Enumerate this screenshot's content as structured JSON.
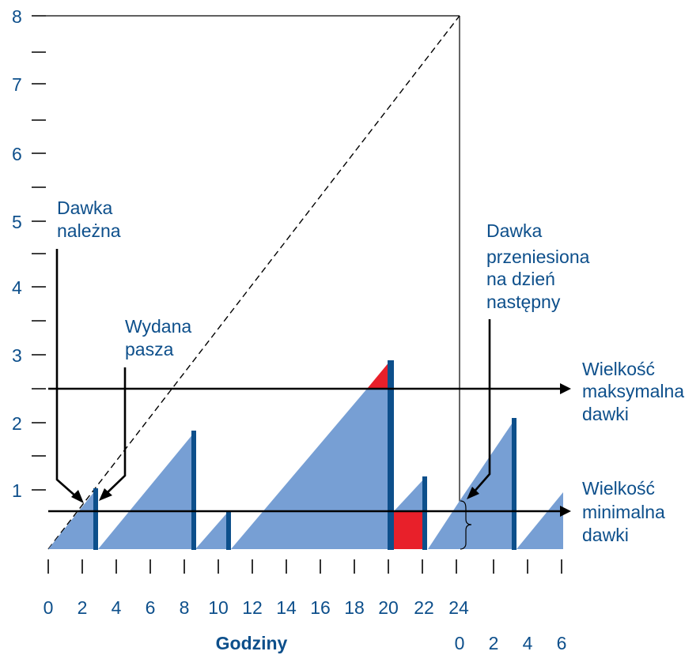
{
  "y_axis": {
    "ticks": [
      "1",
      "2",
      "3",
      "4",
      "5",
      "6",
      "7",
      "8"
    ]
  },
  "x_axis": {
    "ticks": [
      "0",
      "2",
      "4",
      "6",
      "8",
      "10",
      "12",
      "14",
      "16",
      "18",
      "20",
      "22",
      "24"
    ],
    "next_day_ticks": [
      "0",
      "2",
      "4",
      "6"
    ],
    "title": "Godziny"
  },
  "annotations": {
    "due_dose": [
      "Dawka",
      "należna"
    ],
    "feed_issued": [
      "Wydana",
      "pasza"
    ],
    "carried_over": [
      "Dawka",
      "przeniesiona",
      "na dzień",
      "następny"
    ],
    "max_dose": [
      "Wielkość",
      "maksymalna",
      "dawki"
    ],
    "min_dose": [
      "Wielkość",
      "minimalna",
      "dawki"
    ]
  },
  "colors": {
    "fill": "#779fd4",
    "bar": "#0d4f8b",
    "excess": "#e8202a",
    "text": "#0d4f8b",
    "line": "#000000"
  },
  "chart_data": {
    "type": "area",
    "xlabel": "Godziny",
    "ylabel": "",
    "xlim": [
      0,
      30
    ],
    "ylim": [
      0,
      8
    ],
    "max_dose_level": 2.5,
    "min_dose_level": 0.6,
    "cumulative_target": {
      "from": [
        0,
        0
      ],
      "to": [
        24,
        8
      ]
    },
    "feed_events": [
      {
        "start": 0,
        "end": 2.7,
        "peak": 0.9
      },
      {
        "start": 3.0,
        "end": 8.5,
        "peak": 1.8
      },
      {
        "start": 8.6,
        "end": 10.6,
        "peak": 0.6
      },
      {
        "start": 10.9,
        "end": 20.0,
        "peak": 2.8
      },
      {
        "start": 20.0,
        "end": 22.0,
        "peak": 1.1
      },
      {
        "start": 22.0,
        "end": 24.0,
        "peak": 0.9
      },
      {
        "start": 24.0,
        "end": 27.2,
        "peak": 1.9
      },
      {
        "start": 27.2,
        "end": 30.0,
        "peak": 0.9
      }
    ]
  }
}
